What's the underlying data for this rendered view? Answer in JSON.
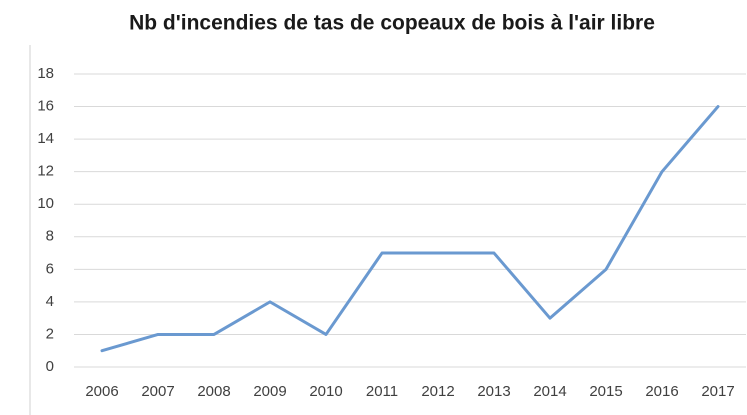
{
  "chart_data": {
    "type": "line",
    "title": "Nb d'incendies de tas de copeaux de bois à l'air libre",
    "categories": [
      "2006",
      "2007",
      "2008",
      "2009",
      "2010",
      "2011",
      "2012",
      "2013",
      "2014",
      "2015",
      "2016",
      "2017"
    ],
    "values": [
      1,
      2,
      2,
      4,
      2,
      7,
      7,
      7,
      3,
      6,
      12,
      16
    ],
    "color": "#6a99d0",
    "ylim": [
      0,
      18
    ],
    "yticks": [
      0,
      2,
      4,
      6,
      8,
      10,
      12,
      14,
      16,
      18
    ],
    "grid": true
  }
}
